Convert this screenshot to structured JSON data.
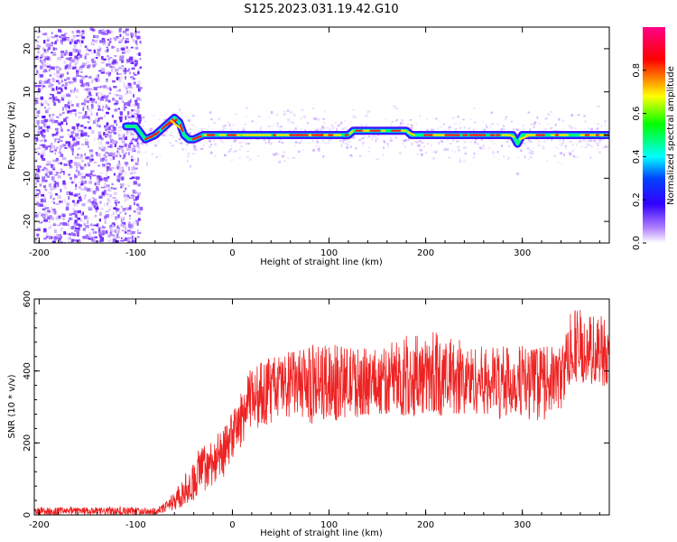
{
  "title": "S125.2023.031.19.42.G10",
  "chart_data": [
    {
      "type": "heatmap",
      "xlabel": "Height of straight line (km)",
      "ylabel": "Frequency (Hz)",
      "xlim": [
        -205,
        390
      ],
      "ylim": [
        -25,
        25
      ],
      "x_ticks": [
        -200,
        -100,
        0,
        100,
        200,
        300
      ],
      "y_ticks": [
        -20,
        -10,
        0,
        10,
        20
      ],
      "colorbar": {
        "label": "Normalized spectral amplitude",
        "range": [
          0.0,
          1.0
        ],
        "ticks": [
          0.0,
          0.2,
          0.4,
          0.6,
          0.8
        ],
        "colors": [
          "#ffffff",
          "#5500ff",
          "#0000ff",
          "#00ffff",
          "#00ff00",
          "#ffff00",
          "#ff0000",
          "#ff0077"
        ]
      },
      "noise_region_x": [
        -205,
        -100
      ],
      "ridge": {
        "x": [
          -110,
          -100,
          -90,
          -80,
          -70,
          -60,
          -55,
          -50,
          -45,
          -40,
          -30,
          -20,
          0,
          50,
          100,
          120,
          125,
          150,
          180,
          185,
          200,
          250,
          290,
          295,
          300,
          350,
          390
        ],
        "freq_hz": [
          2,
          2,
          -1,
          0,
          2,
          4,
          3,
          0,
          -1,
          -1,
          0,
          0,
          0,
          0,
          0,
          0,
          1,
          1,
          1,
          0,
          0,
          0,
          0,
          -2,
          0,
          0,
          0
        ]
      }
    },
    {
      "type": "line",
      "xlabel": "Height of straight line (km)",
      "ylabel": "SNR (10 * v/v)",
      "xlim": [
        -205,
        390
      ],
      "ylim": [
        0,
        600
      ],
      "x_ticks": [
        -200,
        -100,
        0,
        100,
        200,
        300
      ],
      "y_ticks": [
        0,
        200,
        400,
        600
      ],
      "color": "#ee2222",
      "envelope": {
        "x": [
          -205,
          -80,
          -70,
          -50,
          -30,
          -10,
          0,
          10,
          20,
          50,
          100,
          150,
          200,
          250,
          300,
          340,
          350,
          390
        ],
        "mean": [
          10,
          10,
          20,
          60,
          130,
          170,
          220,
          270,
          330,
          360,
          370,
          370,
          380,
          375,
          370,
          380,
          460,
          460
        ],
        "lower": [
          0,
          0,
          5,
          20,
          60,
          100,
          150,
          190,
          230,
          260,
          250,
          270,
          280,
          270,
          260,
          260,
          370,
          370
        ],
        "upper": [
          25,
          25,
          35,
          110,
          210,
          250,
          290,
          360,
          420,
          460,
          480,
          470,
          520,
          480,
          470,
          460,
          570,
          600
        ]
      }
    }
  ]
}
